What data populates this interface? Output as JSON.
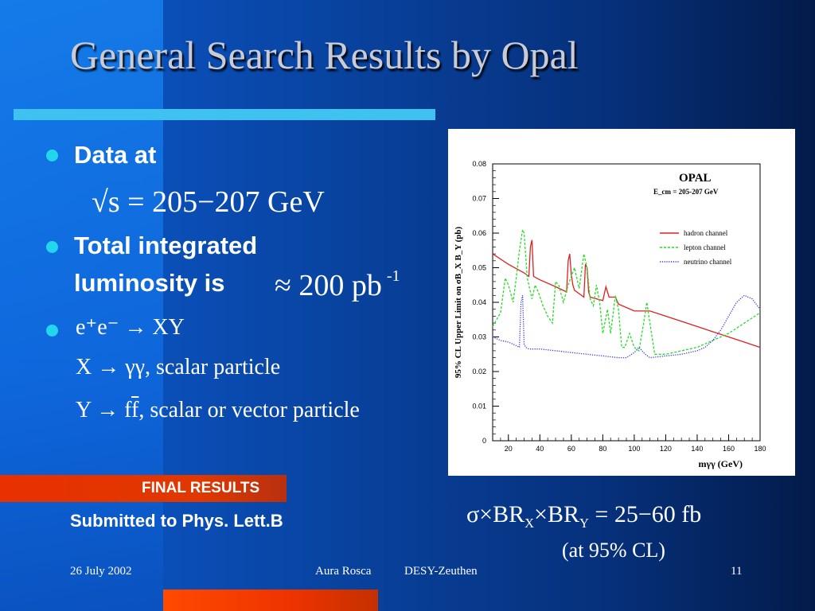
{
  "slide": {
    "title": "General Search Results by Opal",
    "bullets": {
      "data_at": "Data at",
      "sqrt_s": "s = 205−207 GeV",
      "lumi_line1": "Total integrated",
      "lumi_line2": "luminosity is",
      "lumi_value": "≈ 200 pb",
      "lumi_exp": "-1",
      "process": "e⁺e⁻ → XY",
      "x_decay": "X → γγ, scalar particle",
      "y_decay_prefix": "Y → f",
      "y_decay_fbar": "f",
      "y_decay_rest": ", scalar or vector particle"
    },
    "final_results": "FINAL RESULTS",
    "submitted": "Submitted to Phys. Lett.B",
    "result_formula": "σ×BR",
    "result_sub_x": "X",
    "result_mid": "×BR",
    "result_sub_y": "Y",
    "result_value": "= 25−60 fb",
    "result_cl": "(at 95% CL)",
    "footer": {
      "date": "26 July 2002",
      "author": "Aura Rosca",
      "institute": "DESY-Zeuthen",
      "page": "11"
    }
  },
  "colors": {
    "bullet": "#22d6ee",
    "title_rule": "#3fc2f0",
    "final_bar": "#e83000",
    "hadron": "#e02020",
    "lepton": "#22dd22",
    "neutrino": "#3333ee"
  },
  "chart_data": {
    "type": "line",
    "title": "OPAL",
    "subtitle": "E_cm = 205-207 GeV",
    "xlabel": "mγγ (GeV)",
    "ylabel": "95% CL Upper Limit on σB_X B_Y (pb)",
    "xlim": [
      10,
      180
    ],
    "ylim": [
      0,
      0.08
    ],
    "xticks": [
      20,
      40,
      60,
      80,
      100,
      120,
      140,
      160,
      180
    ],
    "yticks": [
      0,
      0.01,
      0.02,
      0.03,
      0.04,
      0.05,
      0.06,
      0.07,
      0.08
    ],
    "ytick_labels": [
      "0",
      "0.01",
      "0.02",
      "0.03",
      "0.04",
      "0.05",
      "0.06",
      "0.07",
      "0.08"
    ],
    "legend": "right",
    "series": [
      {
        "name": "hadron channel",
        "style": "solid",
        "x": [
          10,
          20,
          30,
          33,
          34,
          35,
          36,
          40,
          50,
          57,
          58,
          59,
          60,
          61,
          62,
          65,
          68,
          69,
          70,
          71,
          72,
          80,
          82,
          83,
          84,
          88,
          90,
          100,
          110,
          120,
          130,
          140,
          150,
          160,
          170,
          180
        ],
        "y": [
          0.054,
          0.051,
          0.0485,
          0.0475,
          0.056,
          0.058,
          0.0475,
          0.0465,
          0.0445,
          0.043,
          0.052,
          0.054,
          0.048,
          0.045,
          0.0435,
          0.0425,
          0.0415,
          0.051,
          0.05,
          0.043,
          0.0415,
          0.0405,
          0.0445,
          0.043,
          0.0415,
          0.0415,
          0.0395,
          0.0375,
          0.0375,
          0.036,
          0.0345,
          0.033,
          0.0315,
          0.03,
          0.0285,
          0.027
        ]
      },
      {
        "name": "lepton channel",
        "style": "dashed",
        "x": [
          10,
          15,
          18,
          20,
          23,
          25,
          27,
          29,
          30,
          32,
          35,
          37,
          39,
          42,
          45,
          48,
          50,
          52,
          55,
          58,
          62,
          65,
          68,
          70,
          72,
          74,
          76,
          78,
          80,
          83,
          85,
          88,
          90,
          92,
          94,
          97,
          100,
          103,
          106,
          108,
          110,
          113,
          120,
          130,
          140,
          150,
          160,
          170,
          180
        ],
        "y": [
          0.033,
          0.037,
          0.047,
          0.045,
          0.04,
          0.047,
          0.055,
          0.061,
          0.06,
          0.047,
          0.041,
          0.045,
          0.043,
          0.039,
          0.036,
          0.034,
          0.046,
          0.045,
          0.04,
          0.045,
          0.05,
          0.044,
          0.054,
          0.05,
          0.041,
          0.039,
          0.045,
          0.04,
          0.031,
          0.038,
          0.031,
          0.042,
          0.038,
          0.027,
          0.027,
          0.031,
          0.027,
          0.026,
          0.034,
          0.04,
          0.034,
          0.025,
          0.025,
          0.026,
          0.027,
          0.029,
          0.031,
          0.034,
          0.037
        ]
      },
      {
        "name": "neutrino channel",
        "style": "dotted",
        "x": [
          10,
          15,
          20,
          25,
          27,
          28,
          29,
          30,
          31,
          33,
          40,
          50,
          60,
          70,
          80,
          90,
          95,
          100,
          103,
          107,
          110,
          120,
          130,
          140,
          145,
          150,
          155,
          160,
          165,
          170,
          175,
          180
        ],
        "y": [
          0.03,
          0.029,
          0.0285,
          0.0275,
          0.027,
          0.04,
          0.042,
          0.028,
          0.027,
          0.0265,
          0.0265,
          0.026,
          0.0255,
          0.025,
          0.0245,
          0.024,
          0.024,
          0.0255,
          0.027,
          0.025,
          0.024,
          0.0245,
          0.025,
          0.026,
          0.027,
          0.029,
          0.032,
          0.036,
          0.04,
          0.042,
          0.041,
          0.038
        ]
      }
    ]
  }
}
